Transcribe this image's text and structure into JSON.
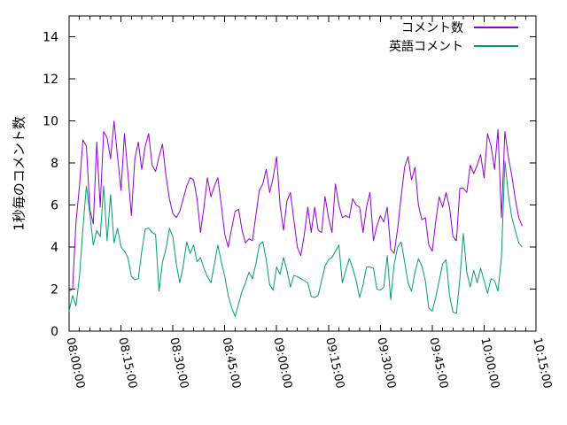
{
  "figure": {
    "background_color": "#ffffff",
    "axis_color": "#000000"
  },
  "chart_data": {
    "type": "line",
    "title": "",
    "xlabel": "",
    "ylabel": "1秒毎のコメント数",
    "grid": false,
    "legend_position": "top-right-inside",
    "ylim": [
      0,
      15
    ],
    "y_ticks": [
      0,
      2,
      4,
      6,
      8,
      10,
      12,
      14
    ],
    "xlim_minutes": [
      0,
      135
    ],
    "x_unit": "minutes since 08:00:00",
    "x_major_tick_minutes": [
      0,
      15,
      30,
      45,
      60,
      75,
      90,
      105,
      120,
      135
    ],
    "x_tick_labels": [
      "08:00:00",
      "08:15:00",
      "08:30:00",
      "08:45:00",
      "09:00:00",
      "09:15:00",
      "09:30:00",
      "09:45:00",
      "10:00:00",
      "10:15:00"
    ],
    "x_minor_tick_interval_minutes": 3,
    "series": [
      {
        "name": "コメント数",
        "color": "#9400d3",
        "x_start_minute": 0,
        "x_step_minutes": 1,
        "values": [
          1.9,
          2.0,
          5.2,
          6.9,
          9.1,
          8.8,
          5.8,
          5.1,
          9.0,
          5.9,
          9.5,
          9.2,
          8.2,
          10.0,
          8.3,
          6.7,
          9.4,
          7.5,
          5.5,
          8.2,
          9.0,
          7.7,
          8.8,
          9.4,
          7.9,
          7.6,
          8.3,
          8.9,
          7.4,
          6.3,
          5.6,
          5.4,
          5.7,
          6.3,
          6.9,
          7.3,
          7.2,
          6.3,
          4.7,
          5.9,
          7.3,
          6.4,
          6.9,
          7.3,
          6.0,
          4.6,
          4.0,
          4.9,
          5.7,
          5.8,
          4.8,
          4.2,
          4.4,
          4.3,
          5.5,
          6.7,
          7.0,
          7.7,
          6.6,
          7.3,
          8.3,
          6.0,
          4.8,
          6.2,
          6.6,
          5.3,
          4.0,
          3.6,
          4.6,
          5.9,
          4.7,
          5.9,
          4.8,
          4.7,
          6.4,
          5.4,
          4.7,
          7.0,
          6.0,
          5.4,
          5.5,
          5.4,
          6.3,
          6.0,
          5.9,
          4.7,
          5.9,
          6.6,
          4.3,
          5.0,
          5.5,
          5.2,
          5.9,
          3.9,
          3.7,
          4.9,
          6.4,
          7.8,
          8.3,
          7.2,
          7.8,
          6.0,
          5.3,
          5.4,
          4.1,
          3.8,
          5.2,
          6.4,
          5.9,
          6.6,
          5.9,
          4.5,
          4.3,
          6.8,
          6.8,
          6.6,
          7.9,
          7.5,
          7.9,
          8.4,
          7.3,
          9.4,
          8.8,
          7.7,
          9.6,
          5.4,
          9.5,
          8.3,
          7.4,
          6.3,
          5.4,
          5.0
        ]
      },
      {
        "name": "英語コメント",
        "color": "#009e73",
        "x_start_minute": 0,
        "x_step_minutes": 1,
        "values": [
          0.95,
          1.7,
          1.2,
          2.6,
          4.9,
          6.9,
          5.6,
          4.1,
          4.8,
          4.5,
          6.9,
          4.3,
          6.5,
          4.2,
          4.9,
          4.0,
          3.8,
          3.5,
          2.6,
          2.45,
          2.5,
          3.8,
          4.85,
          4.9,
          4.7,
          4.6,
          1.9,
          3.3,
          3.9,
          4.9,
          4.5,
          3.2,
          2.3,
          3.1,
          4.25,
          3.7,
          4.1,
          3.3,
          3.5,
          3.0,
          2.6,
          2.3,
          3.2,
          4.1,
          3.3,
          2.6,
          1.7,
          1.1,
          0.7,
          1.3,
          1.9,
          2.3,
          2.8,
          2.5,
          3.2,
          4.1,
          4.25,
          3.4,
          2.2,
          1.95,
          3.05,
          2.7,
          3.5,
          2.9,
          2.1,
          2.65,
          2.6,
          2.5,
          2.4,
          2.3,
          1.65,
          1.6,
          1.7,
          2.4,
          3.1,
          3.4,
          3.5,
          3.8,
          4.1,
          2.3,
          2.9,
          3.45,
          3.0,
          2.4,
          1.6,
          2.2,
          3.05,
          3.05,
          3.0,
          2.0,
          1.95,
          2.1,
          3.6,
          1.5,
          3.2,
          4.0,
          4.25,
          3.3,
          2.3,
          1.9,
          2.8,
          3.45,
          3.1,
          2.4,
          1.1,
          0.95,
          1.6,
          2.4,
          3.2,
          3.4,
          1.7,
          0.9,
          0.85,
          2.5,
          4.65,
          2.8,
          2.1,
          2.9,
          2.3,
          3.0,
          2.4,
          1.8,
          2.5,
          2.4,
          1.9,
          3.5,
          8.1,
          6.5,
          5.4,
          4.8,
          4.2,
          4.0
        ]
      }
    ]
  }
}
